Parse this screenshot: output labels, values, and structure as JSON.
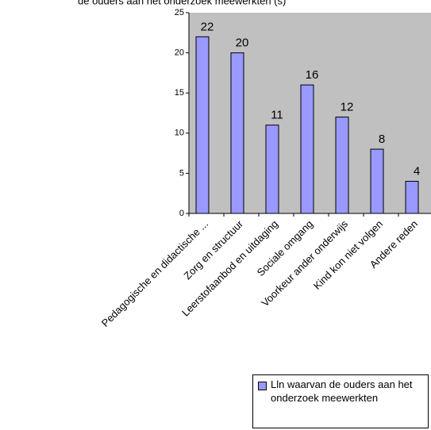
{
  "chart_data": {
    "type": "bar",
    "title": "de ouders aan het onderzoek meewerkten (s)",
    "categories": [
      "Pedagogische en didactische ...",
      "Zorg en structuur",
      "Leerstofaanbod en uitdaging",
      "Sociale omgang",
      "Voorkeur ander onderwijs",
      "Kind kon niet volgen",
      "Andere reden"
    ],
    "series": [
      {
        "name": "Lln waarvan de ouders aan het onderzoek meewerkten",
        "values": [
          22,
          20,
          11,
          16,
          12,
          8,
          4
        ],
        "color": "#9999ff"
      }
    ],
    "ylim": [
      0,
      25
    ],
    "yticks": [
      "0",
      "5",
      "10",
      "15",
      "20",
      "25"
    ],
    "plot_background": "#c0c0c0",
    "legend_position": "bottom-right",
    "grid": false
  }
}
